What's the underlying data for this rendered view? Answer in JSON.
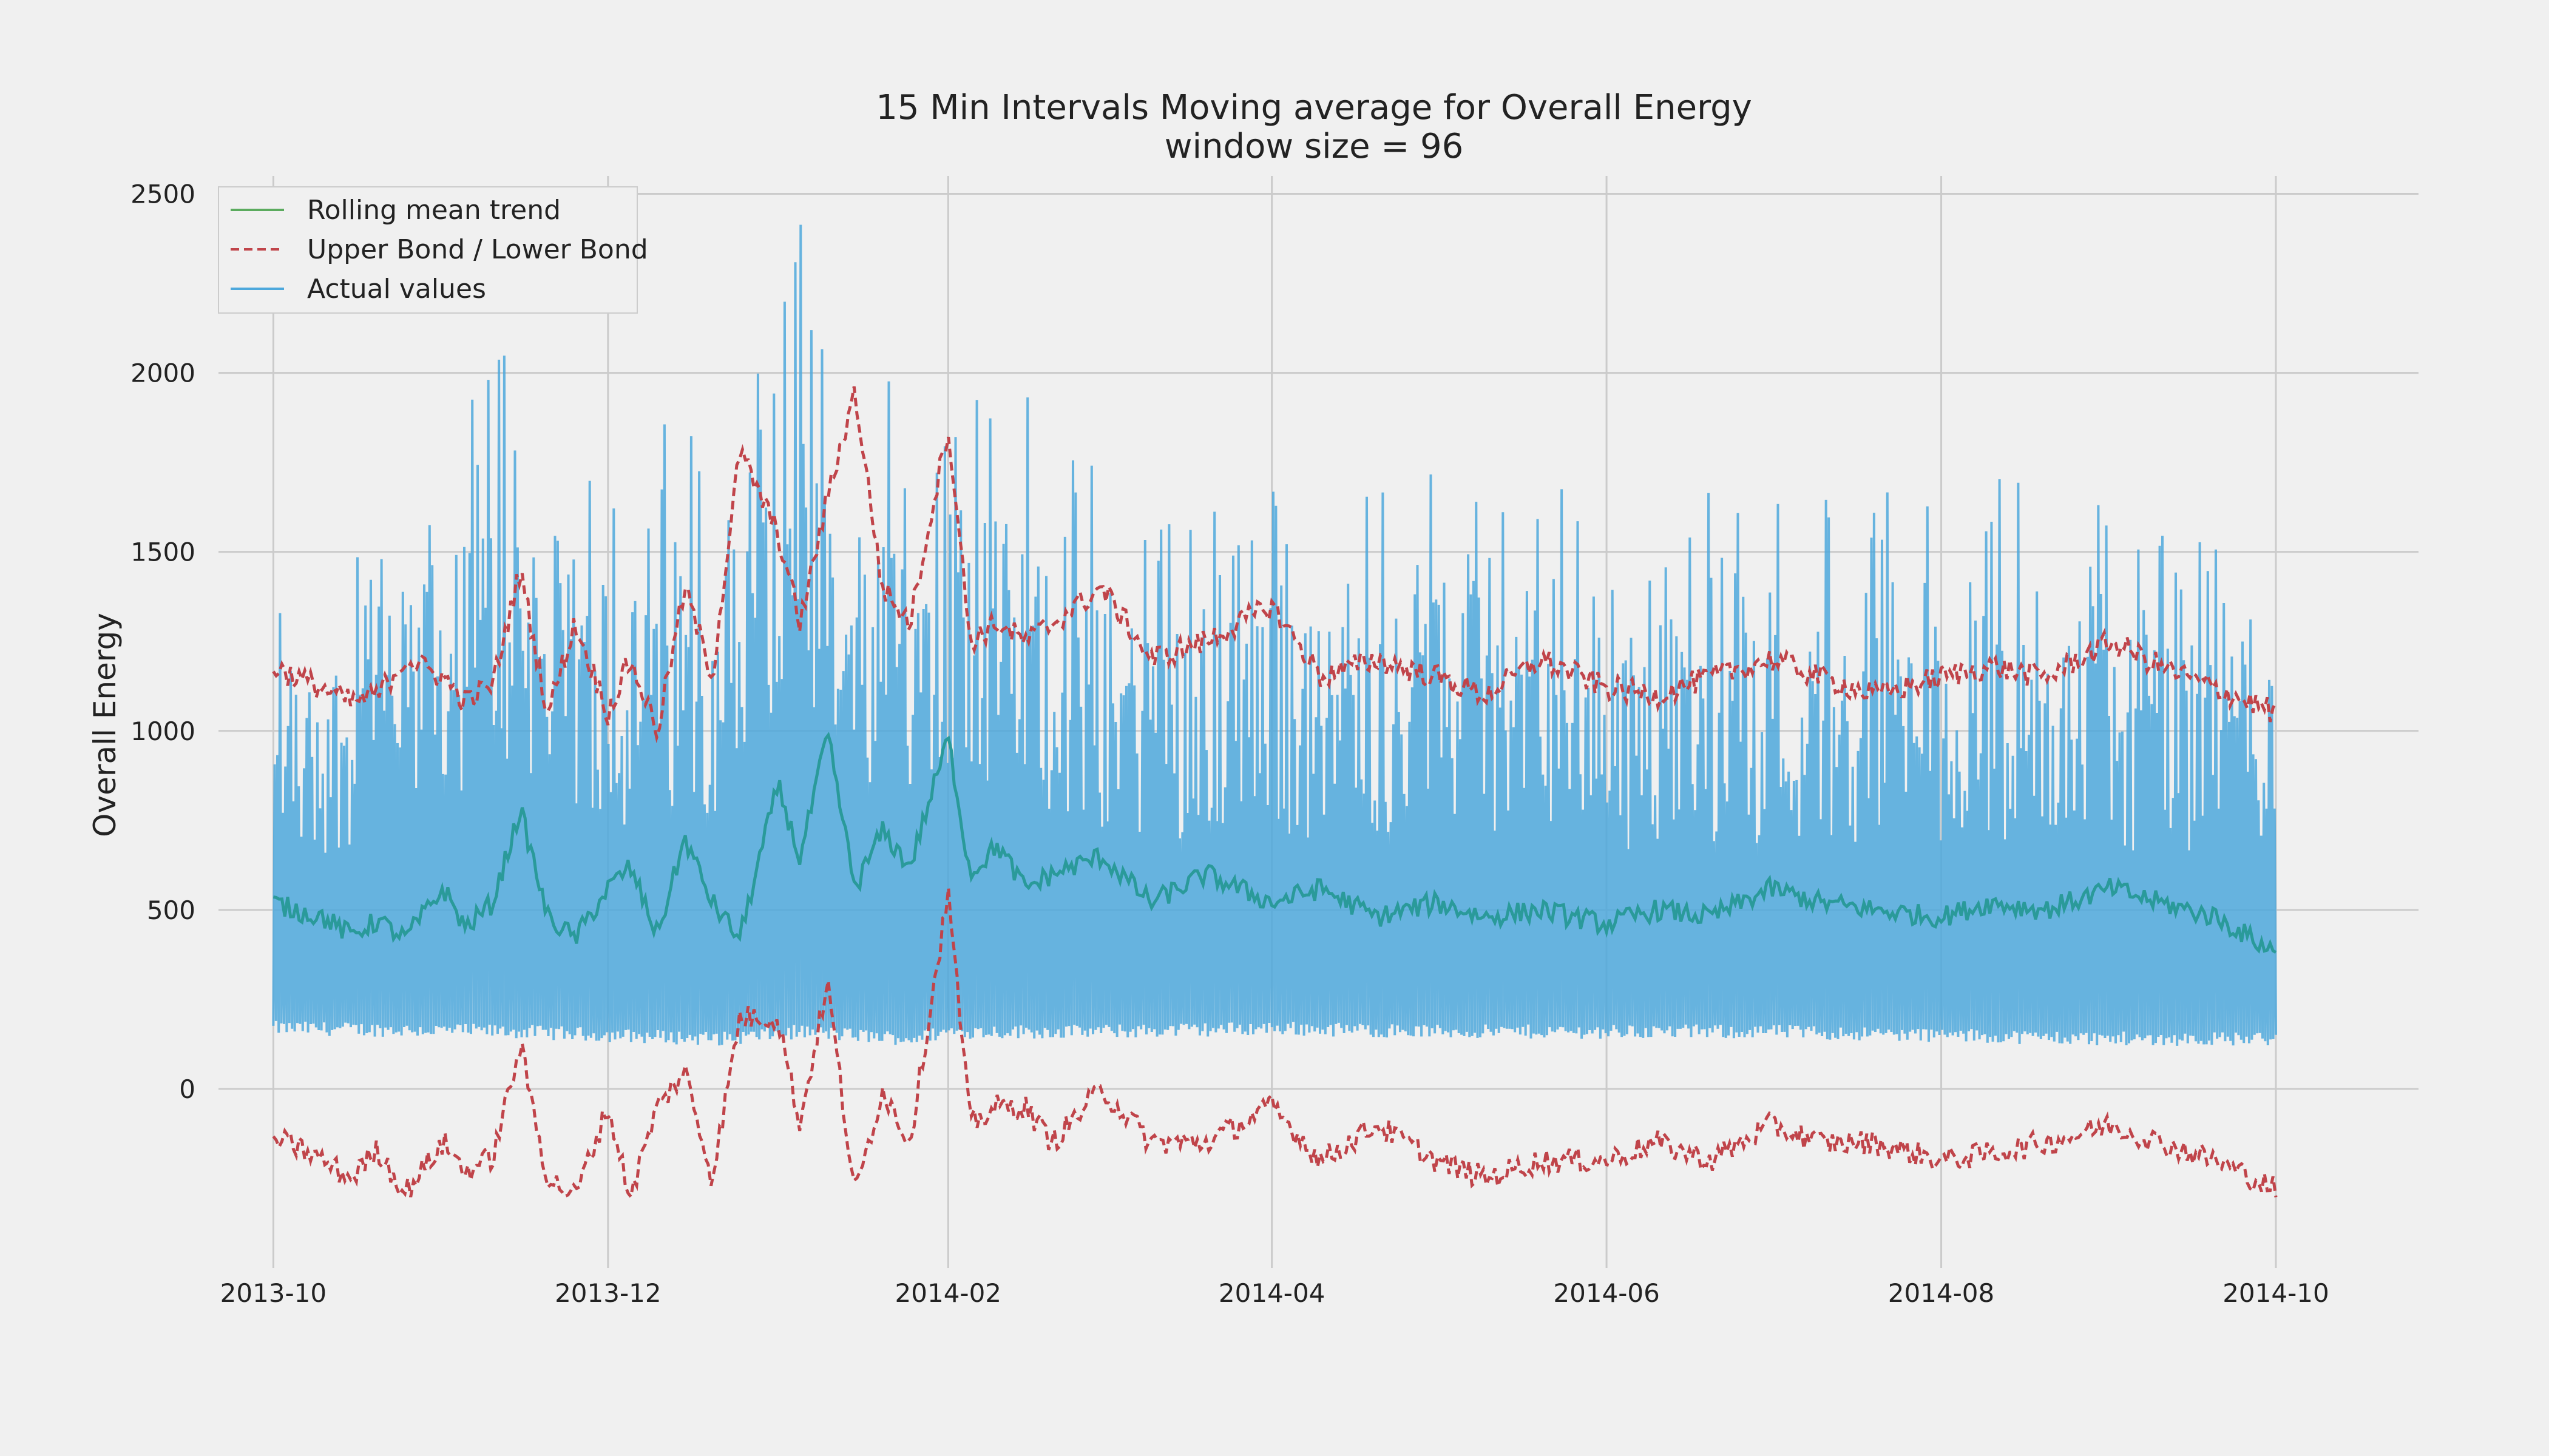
{
  "chart_data": {
    "type": "line",
    "title": "15 Min Intervals Moving average for Overall Energy",
    "subtitle": "window size = 96",
    "xlabel": "",
    "ylabel": "Overall Energy",
    "x_ticks": [
      "2013-10",
      "2013-12",
      "2014-02",
      "2014-04",
      "2014-06",
      "2014-08",
      "2014-10"
    ],
    "y_ticks": [
      "0",
      "500",
      "1000",
      "1500",
      "2000",
      "2500"
    ],
    "xlim": [
      "2013-09-21",
      "2014-10-27"
    ],
    "ylim": [
      -500,
      2550
    ],
    "grid": true,
    "legend_position": "top-left",
    "colors": {
      "rolling": "#5bab5e",
      "bounds": "#c0444a",
      "actual": "#4da8dc",
      "background": "#f0f0f0"
    },
    "series": [
      {
        "name": "Rolling mean trend",
        "style": "solid",
        "dates": [
          "2013-10-01",
          "2013-10-05",
          "2013-10-10",
          "2013-10-15",
          "2013-10-20",
          "2013-10-25",
          "2013-11-01",
          "2013-11-05",
          "2013-11-10",
          "2013-11-15",
          "2013-11-20",
          "2013-11-25",
          "2013-12-01",
          "2013-12-05",
          "2013-12-10",
          "2013-12-15",
          "2013-12-20",
          "2013-12-25",
          "2014-01-01",
          "2014-01-05",
          "2014-01-10",
          "2014-01-15",
          "2014-01-20",
          "2014-01-25",
          "2014-02-01",
          "2014-02-05",
          "2014-02-10",
          "2014-02-15",
          "2014-02-20",
          "2014-03-01",
          "2014-03-10",
          "2014-03-20",
          "2014-04-01",
          "2014-04-10",
          "2014-04-20",
          "2014-05-01",
          "2014-05-10",
          "2014-05-20",
          "2014-06-01",
          "2014-06-10",
          "2014-06-20",
          "2014-07-01",
          "2014-07-10",
          "2014-07-20",
          "2014-08-01",
          "2014-08-10",
          "2014-08-20",
          "2014-09-01",
          "2014-09-10",
          "2014-09-20",
          "2014-10-01"
        ],
        "values": [
          520,
          500,
          480,
          430,
          470,
          420,
          560,
          450,
          520,
          780,
          480,
          420,
          560,
          620,
          430,
          700,
          520,
          420,
          850,
          640,
          990,
          560,
          720,
          620,
          980,
          600,
          680,
          560,
          600,
          650,
          520,
          600,
          520,
          560,
          480,
          520,
          480,
          500,
          460,
          500,
          480,
          560,
          520,
          500,
          480,
          520,
          500,
          560,
          520,
          480,
          380
        ]
      },
      {
        "name": "Upper Bond / Lower Bond",
        "style": "dashed",
        "upper_values": [
          1180,
          1150,
          1120,
          1080,
          1100,
          1200,
          1150,
          1080,
          1130,
          1450,
          1050,
          1300,
          1050,
          1200,
          1000,
          1400,
          1150,
          1780,
          1550,
          1300,
          1650,
          1950,
          1400,
          1300,
          1850,
          1250,
          1300,
          1250,
          1300,
          1400,
          1200,
          1250,
          1350,
          1150,
          1200,
          1150,
          1100,
          1200,
          1120,
          1100,
          1150,
          1200,
          1150,
          1100,
          1150,
          1180,
          1150,
          1250,
          1180,
          1120,
          1050
        ],
        "lower_values": [
          -140,
          -160,
          -200,
          -250,
          -170,
          -290,
          -150,
          -230,
          -190,
          120,
          -250,
          -300,
          -50,
          -300,
          -50,
          50,
          -250,
          200,
          200,
          -100,
          300,
          -300,
          0,
          -150,
          550,
          -100,
          -50,
          -50,
          -150,
          0,
          -150,
          -150,
          -50,
          -200,
          -100,
          -200,
          -250,
          -200,
          -200,
          -150,
          -200,
          -100,
          -150,
          -150,
          -200,
          -180,
          -150,
          -100,
          -150,
          -200,
          -280
        ]
      },
      {
        "name": "Actual values",
        "style": "solid",
        "dates": [
          "2013-10-01",
          "2013-11-15",
          "2013-12-01",
          "2013-12-22",
          "2014-01-05",
          "2014-01-15",
          "2014-01-25",
          "2014-02-01",
          "2014-03-01",
          "2014-04-01",
          "2014-05-01",
          "2014-06-01",
          "2014-07-01",
          "2014-08-01",
          "2014-09-01",
          "2014-10-01"
        ],
        "min_values": [
          150,
          140,
          130,
          120,
          140,
          130,
          120,
          140,
          140,
          150,
          140,
          140,
          140,
          130,
          120,
          120
        ],
        "max_values": [
          1400,
          2220,
          1750,
          2000,
          2440,
          1850,
          2150,
          2280,
          1750,
          1700,
          1780,
          1640,
          1700,
          1700,
          1720,
          1420
        ]
      }
    ]
  }
}
